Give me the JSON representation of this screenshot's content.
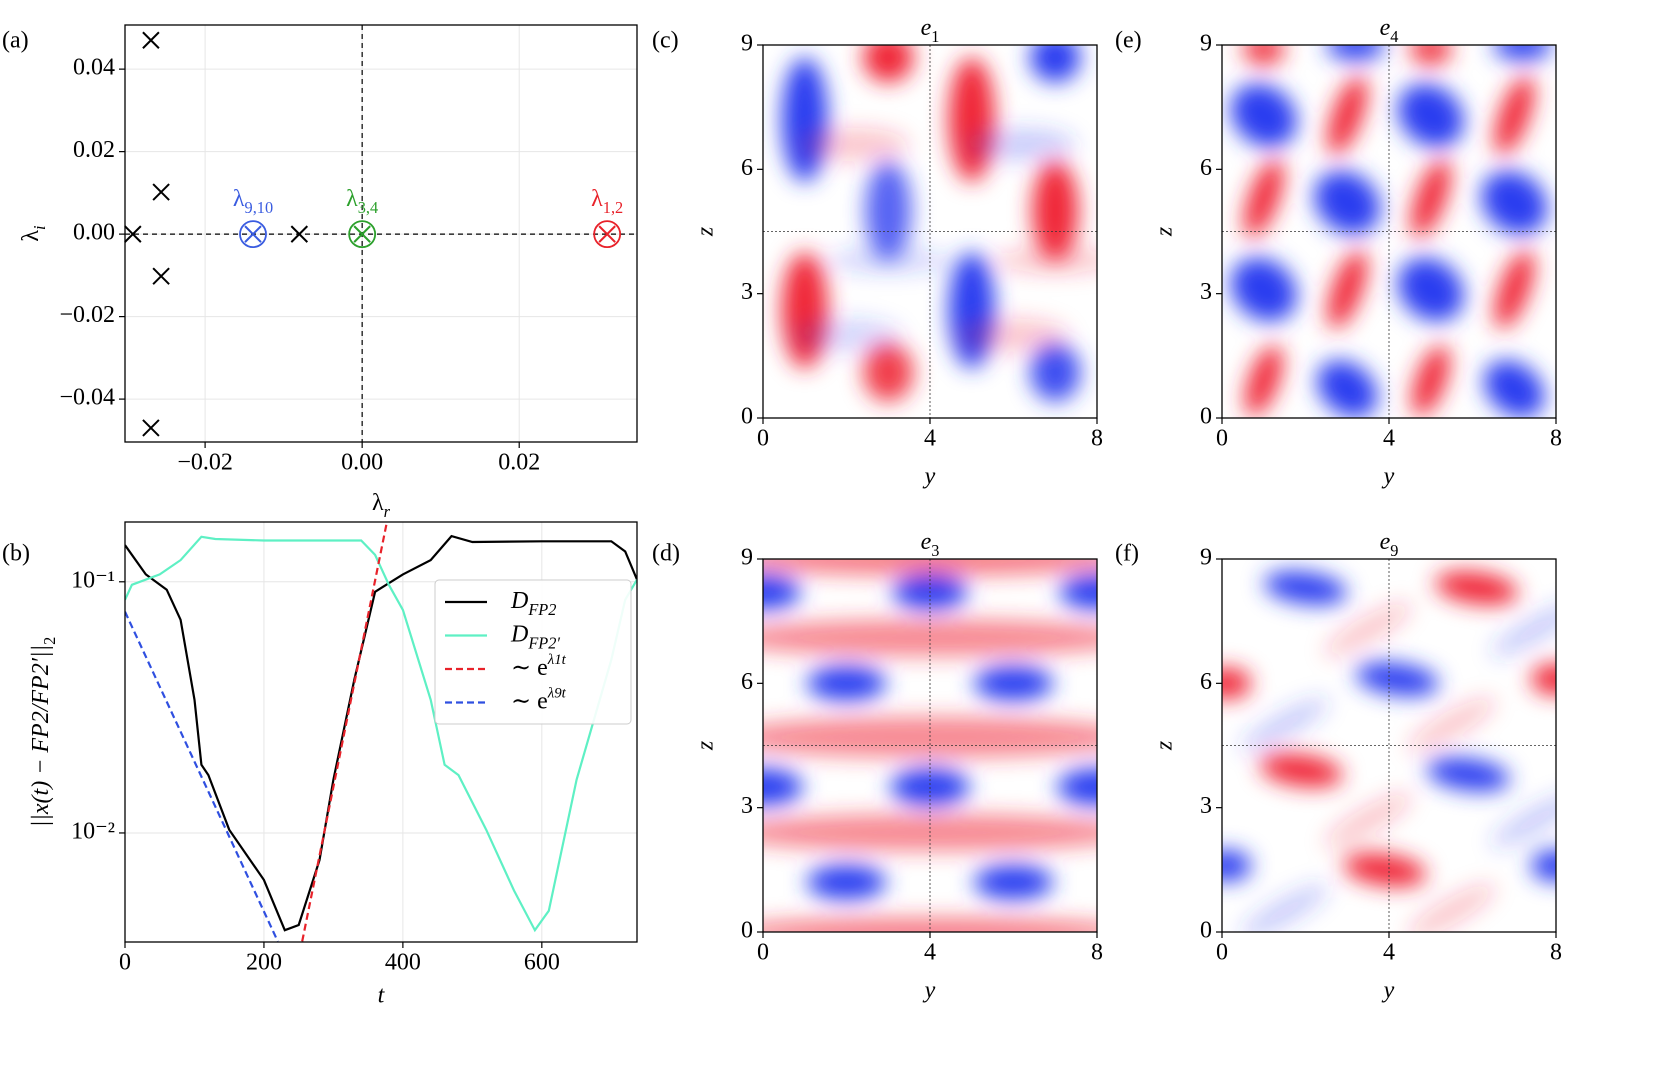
{
  "chart_data": [
    {
      "type": "scatter",
      "panel": "(a)",
      "xlabel": "λ",
      "xlabel_sub": "r",
      "ylabel": "λ",
      "ylabel_sub": "i",
      "xlim": [
        -0.0302,
        0.035
      ],
      "ylim": [
        -0.0504,
        0.0507
      ],
      "xticks": [
        {
          "value": -0.02,
          "label": "−0.02"
        },
        {
          "value": 0,
          "label": "0.00"
        },
        {
          "value": 0.02,
          "label": "0.02"
        }
      ],
      "yticks": [
        {
          "value": -0.04,
          "label": "−0.04"
        },
        {
          "value": -0.02,
          "label": "−0.02"
        },
        {
          "value": 0,
          "label": "0.00"
        },
        {
          "value": 0.02,
          "label": "0.02"
        },
        {
          "value": 0.04,
          "label": "0.04"
        }
      ],
      "grid": true,
      "points": {
        "color": "#000000",
        "x": [
          -0.0269,
          -0.0256,
          -0.0292,
          -0.0256,
          -0.0269,
          -0.008
        ],
        "y": [
          0.047,
          0.0102,
          0,
          -0.0102,
          -0.047,
          0
        ]
      },
      "highlighted": [
        {
          "label": "λ",
          "label_sub": "9,10",
          "x": -0.0139,
          "y": 0,
          "color": "#3a5ce0"
        },
        {
          "label": "λ",
          "label_sub": "3,4",
          "x": 0,
          "y": 0,
          "color": "#2ca02c"
        },
        {
          "label": "λ",
          "label_sub": "1,2",
          "x": 0.0312,
          "y": 0,
          "color": "#e8222a"
        }
      ]
    },
    {
      "type": "line",
      "panel": "(b)",
      "log_y": true,
      "grid": true,
      "xlabel": "t",
      "ylabel": "||x(t) − FP2/FP2′||",
      "ylabel_sub": "2",
      "xlim": [
        0,
        737
      ],
      "ylim": [
        0.00368,
        0.173
      ],
      "xticks": [
        0,
        200,
        400,
        600
      ],
      "yticks": [
        {
          "value": 0.1,
          "label": "10⁻¹"
        },
        {
          "value": 0.01,
          "label": "10⁻²"
        }
      ],
      "legend": "upper right",
      "series": [
        {
          "name": "D",
          "name_sub": "FP2",
          "color": "#000000",
          "dash": false,
          "x": [
            0,
            30,
            60,
            80,
            100,
            110,
            120,
            150,
            200,
            230,
            250,
            280,
            300,
            330,
            360,
            400,
            440,
            470,
            500,
            600,
            700,
            720,
            737
          ],
          "values": [
            0.14,
            0.107,
            0.093,
            0.0706,
            0.0339,
            0.0187,
            0.017,
            0.0103,
            0.0065,
            0.0041,
            0.0043,
            0.0078,
            0.0163,
            0.0407,
            0.0912,
            0.107,
            0.122,
            0.152,
            0.144,
            0.145,
            0.145,
            0.132,
            0.102
          ]
        },
        {
          "name": "D",
          "name_sub": "FP2′",
          "color": "#5ef0c4",
          "dash": false,
          "x": [
            0,
            10,
            50,
            80,
            110,
            130,
            200,
            340,
            360,
            380,
            400,
            440,
            460,
            480,
            520,
            560,
            590,
            610,
            650,
            700,
            720,
            737
          ],
          "values": [
            0.0848,
            0.0973,
            0.107,
            0.122,
            0.151,
            0.148,
            0.146,
            0.146,
            0.128,
            0.097,
            0.0773,
            0.0339,
            0.0187,
            0.017,
            0.0103,
            0.0059,
            0.0041,
            0.0049,
            0.0163,
            0.0489,
            0.0848,
            0.102
          ]
        },
        {
          "name": "∼ e",
          "name_sup": "λ1t",
          "color": "#e8222a",
          "dash": true,
          "x": [
            255,
            377
          ],
          "values": [
            0.0037,
            0.173
          ]
        },
        {
          "name": "∼ e",
          "name_sup": "λ9t",
          "color": "#2f4fe0",
          "dash": true,
          "x": [
            0,
            220
          ],
          "values": [
            0.076,
            0.0037
          ]
        }
      ]
    },
    {
      "type": "heatmap",
      "panel": "(c)",
      "title": "e",
      "title_sub": "1",
      "xlabel": "y",
      "ylabel": "z",
      "xlim": [
        0,
        8
      ],
      "ylim": [
        0,
        9
      ],
      "xticks": [
        0,
        4,
        8
      ],
      "yticks": [
        0,
        3,
        6,
        9
      ],
      "crosshair": [
        4,
        4.5
      ],
      "colors": {
        "negative": "#2a3cf0",
        "positive": "#f02838"
      }
    },
    {
      "type": "heatmap",
      "panel": "(e)",
      "title": "e",
      "title_sub": "4",
      "xlabel": "y",
      "ylabel": "z",
      "xlim": [
        0,
        8
      ],
      "ylim": [
        0,
        9
      ],
      "xticks": [
        0,
        4,
        8
      ],
      "yticks": [
        0,
        3,
        6,
        9
      ],
      "crosshair": [
        4,
        4.5
      ],
      "colors": {
        "negative": "#2a3cf0",
        "positive": "#f02838"
      }
    },
    {
      "type": "heatmap",
      "panel": "(d)",
      "title": "e",
      "title_sub": "3",
      "xlabel": "y",
      "ylabel": "z",
      "xlim": [
        0,
        8
      ],
      "ylim": [
        0,
        9
      ],
      "xticks": [
        0,
        4,
        8
      ],
      "yticks": [
        0,
        3,
        6,
        9
      ],
      "crosshair": [
        4,
        4.5
      ],
      "colors": {
        "negative": "#2a3cf0",
        "positive": "#f02838"
      }
    },
    {
      "type": "heatmap",
      "panel": "(f)",
      "title": "e",
      "title_sub": "9",
      "xlabel": "y",
      "ylabel": "z",
      "xlim": [
        0,
        8
      ],
      "ylim": [
        0,
        9
      ],
      "xticks": [
        0,
        4,
        8
      ],
      "yticks": [
        0,
        3,
        6,
        9
      ],
      "crosshair": [
        4,
        4.5
      ],
      "colors": {
        "negative": "#2a3cf0",
        "positive": "#f02838"
      }
    }
  ]
}
